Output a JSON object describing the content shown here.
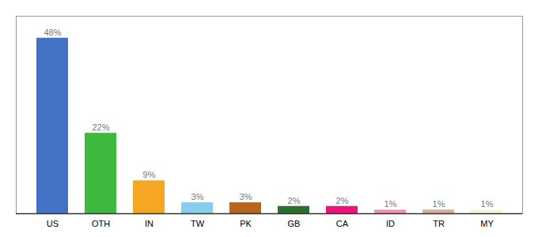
{
  "chart_data": {
    "type": "bar",
    "categories": [
      "US",
      "OTH",
      "IN",
      "TW",
      "PK",
      "GB",
      "CA",
      "ID",
      "TR",
      "MY"
    ],
    "values": [
      48,
      22,
      9,
      3,
      3,
      2,
      2,
      1,
      1,
      1
    ],
    "value_labels": [
      "48%",
      "22%",
      "9%",
      "3%",
      "3%",
      "2%",
      "2%",
      "1%",
      "1%",
      "1%"
    ],
    "colors": [
      "#4472c4",
      "#3dba3d",
      "#f5a623",
      "#87ceeb",
      "#b5651d",
      "#2d6e2d",
      "#f0127a",
      "#f48fb1",
      "#e0a898",
      "#f5f5d8"
    ],
    "ylim": [
      0,
      54
    ],
    "data_labels": true,
    "tick_labels": "x",
    "grid": false
  }
}
